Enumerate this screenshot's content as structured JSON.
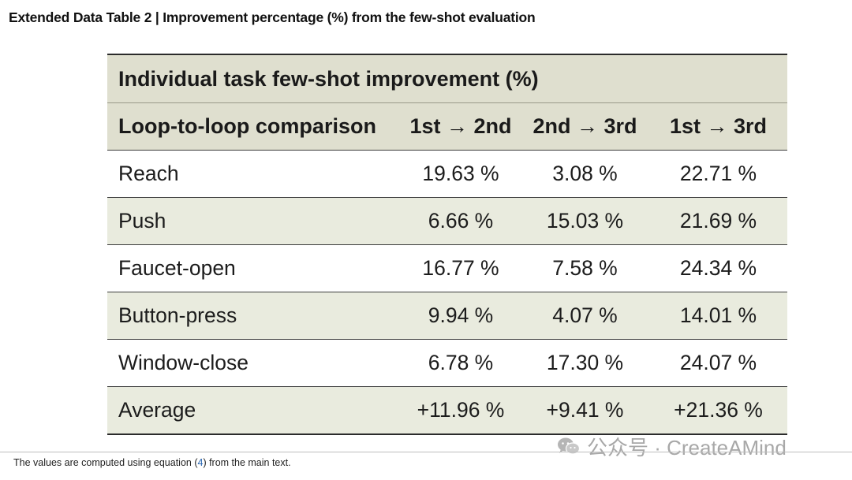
{
  "caption": {
    "label": "Extended Data Table 2",
    "separator": " | ",
    "title": "Improvement percentage (%) from the few-shot evaluation"
  },
  "table": {
    "title": "Individual task few-shot improvement (%)",
    "columns": [
      "Loop-to-loop comparison",
      "1st → 2nd",
      "2nd → 3rd",
      "1st → 3rd"
    ],
    "rows": [
      {
        "task": "Reach",
        "values": [
          "19.63 %",
          "3.08 %",
          "22.71 %"
        ]
      },
      {
        "task": "Push",
        "values": [
          "6.66 %",
          "15.03 %",
          "21.69 %"
        ]
      },
      {
        "task": "Faucet-open",
        "values": [
          "16.77 %",
          "7.58 %",
          "24.34 %"
        ]
      },
      {
        "task": "Button-press",
        "values": [
          "9.94 %",
          "4.07 %",
          "14.01 %"
        ]
      },
      {
        "task": "Window-close",
        "values": [
          "6.78 %",
          "17.30 %",
          "24.07 %"
        ]
      },
      {
        "task": "Average",
        "values": [
          "+11.96 %",
          "+9.41 %",
          "+21.36 %"
        ]
      }
    ]
  },
  "footnote": {
    "before": "The values are computed using equation (",
    "ref": "4",
    "after": ") from the main text."
  },
  "watermark": {
    "text": "公众号 · CreateAMind",
    "icon": "wechat-icon"
  },
  "colors": {
    "header_bg": "#dfdfcf",
    "shaded_row_bg": "#e9ebde",
    "link": "#2563b0"
  }
}
